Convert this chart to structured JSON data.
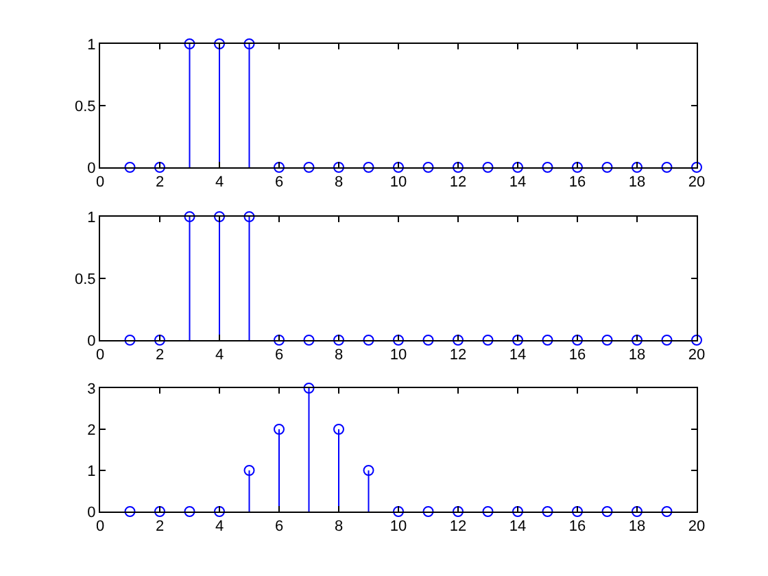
{
  "chart_data": [
    {
      "type": "lollipop",
      "x": [
        1,
        2,
        3,
        4,
        5,
        6,
        7,
        8,
        9,
        10,
        11,
        12,
        13,
        14,
        15,
        16,
        17,
        18,
        19,
        20
      ],
      "values": [
        0,
        0,
        1,
        1,
        1,
        0,
        0,
        0,
        0,
        0,
        0,
        0,
        0,
        0,
        0,
        0,
        0,
        0,
        0,
        0
      ],
      "color": "#0000ff",
      "marker": "circle",
      "xlim": [
        0,
        20
      ],
      "xticks": [
        0,
        2,
        4,
        6,
        8,
        10,
        12,
        14,
        16,
        18,
        20
      ],
      "ylim": [
        0,
        1
      ],
      "yticks": [
        0,
        0.5,
        1
      ]
    },
    {
      "type": "lollipop",
      "x": [
        1,
        2,
        3,
        4,
        5,
        6,
        7,
        8,
        9,
        10,
        11,
        12,
        13,
        14,
        15,
        16,
        17,
        18,
        19,
        20
      ],
      "values": [
        0,
        0,
        1,
        1,
        1,
        0,
        0,
        0,
        0,
        0,
        0,
        0,
        0,
        0,
        0,
        0,
        0,
        0,
        0,
        0
      ],
      "color": "#0000ff",
      "marker": "circle",
      "xlim": [
        0,
        20
      ],
      "xticks": [
        0,
        2,
        4,
        6,
        8,
        10,
        12,
        14,
        16,
        18,
        20
      ],
      "ylim": [
        0,
        1
      ],
      "yticks": [
        0,
        0.5,
        1
      ]
    },
    {
      "type": "lollipop",
      "x": [
        1,
        2,
        3,
        4,
        5,
        6,
        7,
        8,
        9,
        10,
        11,
        12,
        13,
        14,
        15,
        16,
        17,
        18,
        19
      ],
      "values": [
        0,
        0,
        0,
        0,
        1,
        2,
        3,
        2,
        1,
        0,
        0,
        0,
        0,
        0,
        0,
        0,
        0,
        0,
        0
      ],
      "color": "#0000ff",
      "marker": "circle",
      "xlim": [
        0,
        20
      ],
      "xticks": [
        0,
        2,
        4,
        6,
        8,
        10,
        12,
        14,
        16,
        18,
        20
      ],
      "ylim": [
        0,
        3
      ],
      "yticks": [
        0,
        1,
        2,
        3
      ]
    }
  ]
}
